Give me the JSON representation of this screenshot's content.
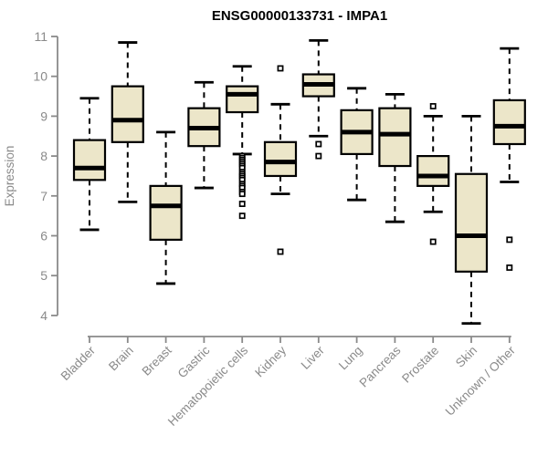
{
  "chart_data": {
    "type": "boxplot",
    "title": "ENSG00000133731 - IMPA1",
    "ylabel": "Expression",
    "xlabel": "",
    "ylim": [
      4,
      11
    ],
    "yticks": [
      4,
      5,
      6,
      7,
      8,
      9,
      10,
      11
    ],
    "grid": false,
    "legend": "none",
    "categories": [
      "Bladder",
      "Brain",
      "Breast",
      "Gastric",
      "Hematopoietic cells",
      "Kidney",
      "Liver",
      "Lung",
      "Pancreas",
      "Prostate",
      "Skin",
      "Unknown / Other"
    ],
    "series": [
      {
        "category": "Bladder",
        "whisker_low": 6.15,
        "q1": 7.4,
        "median": 7.7,
        "q3": 8.4,
        "whisker_high": 9.45,
        "outliers": []
      },
      {
        "category": "Brain",
        "whisker_low": 6.85,
        "q1": 8.35,
        "median": 8.9,
        "q3": 9.75,
        "whisker_high": 10.85,
        "outliers": []
      },
      {
        "category": "Breast",
        "whisker_low": 4.8,
        "q1": 5.9,
        "median": 6.75,
        "q3": 7.25,
        "whisker_high": 8.6,
        "outliers": []
      },
      {
        "category": "Gastric",
        "whisker_low": 7.2,
        "q1": 8.25,
        "median": 8.7,
        "q3": 9.2,
        "whisker_high": 9.85,
        "outliers": []
      },
      {
        "category": "Hematopoietic cells",
        "whisker_low": 8.05,
        "q1": 9.1,
        "median": 9.55,
        "q3": 9.75,
        "whisker_high": 10.25,
        "outliers": [
          8.0,
          7.95,
          7.9,
          7.85,
          7.8,
          7.75,
          7.7,
          7.6,
          7.55,
          7.5,
          7.45,
          7.4,
          7.3,
          7.25,
          7.2,
          7.1,
          7.05,
          6.8,
          6.5
        ]
      },
      {
        "category": "Kidney",
        "whisker_low": 7.05,
        "q1": 7.5,
        "median": 7.85,
        "q3": 8.35,
        "whisker_high": 9.3,
        "outliers": [
          10.2,
          5.6
        ]
      },
      {
        "category": "Liver",
        "whisker_low": 8.5,
        "q1": 9.5,
        "median": 9.8,
        "q3": 10.05,
        "whisker_high": 10.9,
        "outliers": [
          8.3,
          8.0
        ]
      },
      {
        "category": "Lung",
        "whisker_low": 6.9,
        "q1": 8.05,
        "median": 8.6,
        "q3": 9.15,
        "whisker_high": 9.7,
        "outliers": []
      },
      {
        "category": "Pancreas",
        "whisker_low": 6.35,
        "q1": 7.75,
        "median": 8.55,
        "q3": 9.2,
        "whisker_high": 9.55,
        "outliers": []
      },
      {
        "category": "Prostate",
        "whisker_low": 6.6,
        "q1": 7.25,
        "median": 7.5,
        "q3": 8.0,
        "whisker_high": 9.0,
        "outliers": [
          9.25,
          5.85
        ]
      },
      {
        "category": "Skin",
        "whisker_low": 3.8,
        "q1": 5.1,
        "median": 6.0,
        "q3": 7.55,
        "whisker_high": 9.0,
        "outliers": []
      },
      {
        "category": "Unknown / Other",
        "whisker_low": 7.35,
        "q1": 8.3,
        "median": 8.75,
        "q3": 9.4,
        "whisker_high": 10.7,
        "outliers": [
          5.9,
          5.2
        ]
      }
    ],
    "style": {
      "box_fill": "#ECE6C9",
      "box_stroke": "#000000",
      "median_color": "#000000",
      "whisker_color": "#000000",
      "outlier_fill": "#ffffff",
      "axis_color": "#8a8a8a",
      "tick_label_color": "#8a8a8a",
      "title_color": "#000000",
      "background": "#ffffff"
    }
  }
}
